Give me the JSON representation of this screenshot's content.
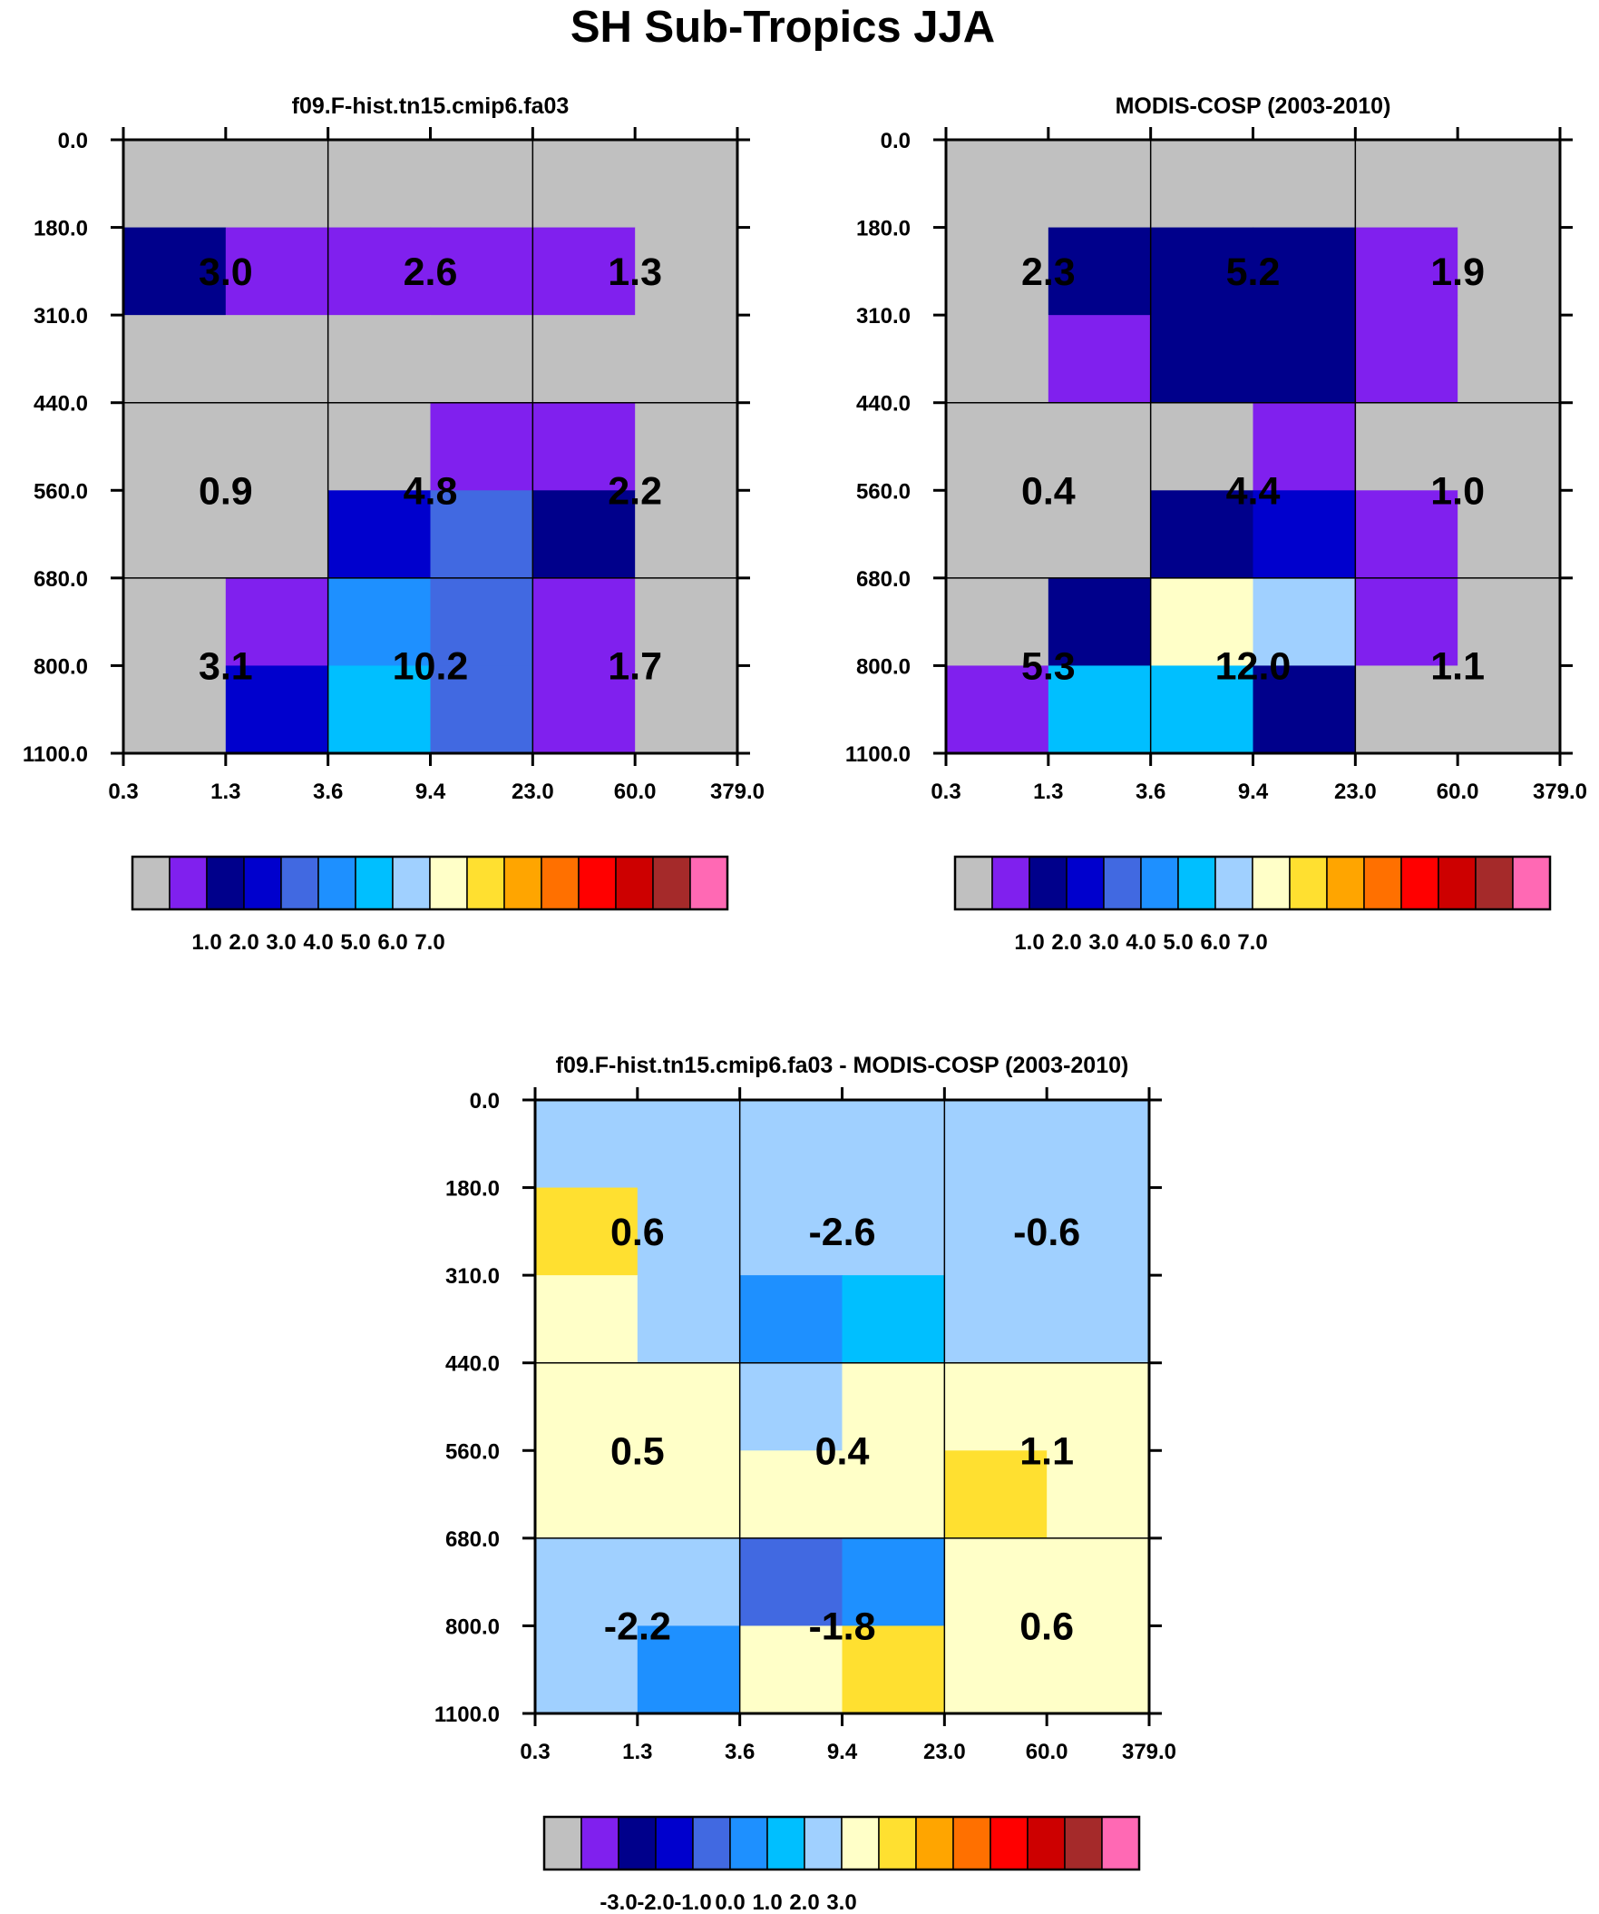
{
  "title": "SH Sub-Tropics JJA",
  "colors": {
    "palette": [
      "#c0c0c0",
      "#8020ee",
      "#00008b",
      "#0000cd",
      "#4169e1",
      "#1e90ff",
      "#00bfff",
      "#a0d0ff",
      "#ffffc8",
      "#ffe030",
      "#ffa500",
      "#ff7000",
      "#ff0000",
      "#cd0000",
      "#a52a2a",
      "#ff69b4"
    ],
    "background": "#ffffff",
    "grid": "#000000",
    "text": "#000000"
  },
  "chart_data": [
    {
      "type": "heatmap",
      "title": "f09.F-hist.tn15.cmip6.fa03",
      "x_tick_labels": [
        "0.3",
        "1.3",
        "3.6",
        "9.4",
        "23.0",
        "60.0",
        "379.0"
      ],
      "y_tick_labels": [
        "0.0",
        "180.0",
        "310.0",
        "440.0",
        "560.0",
        "680.0",
        "800.0",
        "1100.0"
      ],
      "cells": [
        [
          0,
          0,
          0,
          0,
          0,
          0
        ],
        [
          2,
          1,
          1,
          1,
          1,
          0
        ],
        [
          0,
          0,
          0,
          0,
          0,
          0
        ],
        [
          0,
          0,
          0,
          1,
          1,
          0
        ],
        [
          0,
          0,
          3,
          4,
          2,
          0
        ],
        [
          0,
          1,
          5,
          4,
          1,
          0
        ],
        [
          0,
          3,
          6,
          4,
          1,
          0
        ]
      ],
      "box_labels": [
        "3.0",
        "2.6",
        "1.3",
        "0.9",
        "4.8",
        "2.2",
        "3.1",
        "10.2",
        "1.7"
      ],
      "colorbar_labels": [
        "1.0",
        "2.0",
        "3.0",
        "4.0",
        "5.0",
        "6.0",
        "7.0"
      ]
    },
    {
      "type": "heatmap",
      "title": "MODIS-COSP (2003-2010)",
      "x_tick_labels": [
        "0.3",
        "1.3",
        "3.6",
        "9.4",
        "23.0",
        "60.0",
        "379.0"
      ],
      "y_tick_labels": [
        "0.0",
        "180.0",
        "310.0",
        "440.0",
        "560.0",
        "680.0",
        "800.0",
        "1100.0"
      ],
      "cells": [
        [
          0,
          0,
          0,
          0,
          0,
          0
        ],
        [
          0,
          2,
          2,
          2,
          1,
          0
        ],
        [
          0,
          1,
          2,
          2,
          1,
          0
        ],
        [
          0,
          0,
          0,
          1,
          0,
          0
        ],
        [
          0,
          0,
          2,
          3,
          1,
          0
        ],
        [
          0,
          2,
          8,
          7,
          1,
          0
        ],
        [
          1,
          6,
          6,
          2,
          0,
          0
        ]
      ],
      "box_labels": [
        "2.3",
        "5.2",
        "1.9",
        "0.4",
        "4.4",
        "1.0",
        "5.3",
        "12.0",
        "1.1"
      ],
      "colorbar_labels": [
        "1.0",
        "2.0",
        "3.0",
        "4.0",
        "5.0",
        "6.0",
        "7.0"
      ]
    },
    {
      "type": "heatmap",
      "title": "f09.F-hist.tn15.cmip6.fa03 - MODIS-COSP (2003-2010)",
      "x_tick_labels": [
        "0.3",
        "1.3",
        "3.6",
        "9.4",
        "23.0",
        "60.0",
        "379.0"
      ],
      "y_tick_labels": [
        "0.0",
        "180.0",
        "310.0",
        "440.0",
        "560.0",
        "680.0",
        "800.0",
        "1100.0"
      ],
      "cells": [
        [
          7,
          7,
          7,
          7,
          7,
          7
        ],
        [
          9,
          7,
          7,
          7,
          7,
          7
        ],
        [
          8,
          7,
          5,
          6,
          7,
          7
        ],
        [
          8,
          8,
          7,
          8,
          8,
          8
        ],
        [
          8,
          8,
          8,
          8,
          9,
          8
        ],
        [
          7,
          7,
          4,
          5,
          8,
          8
        ],
        [
          7,
          5,
          8,
          9,
          8,
          8
        ]
      ],
      "box_labels": [
        "0.6",
        "-2.6",
        "-0.6",
        "0.5",
        "0.4",
        "1.1",
        "-2.2",
        "-1.8",
        "0.6"
      ],
      "colorbar_labels": [
        "-3.0",
        "-2.0",
        "-1.0",
        "0.0",
        "1.0",
        "2.0",
        "3.0"
      ]
    }
  ]
}
